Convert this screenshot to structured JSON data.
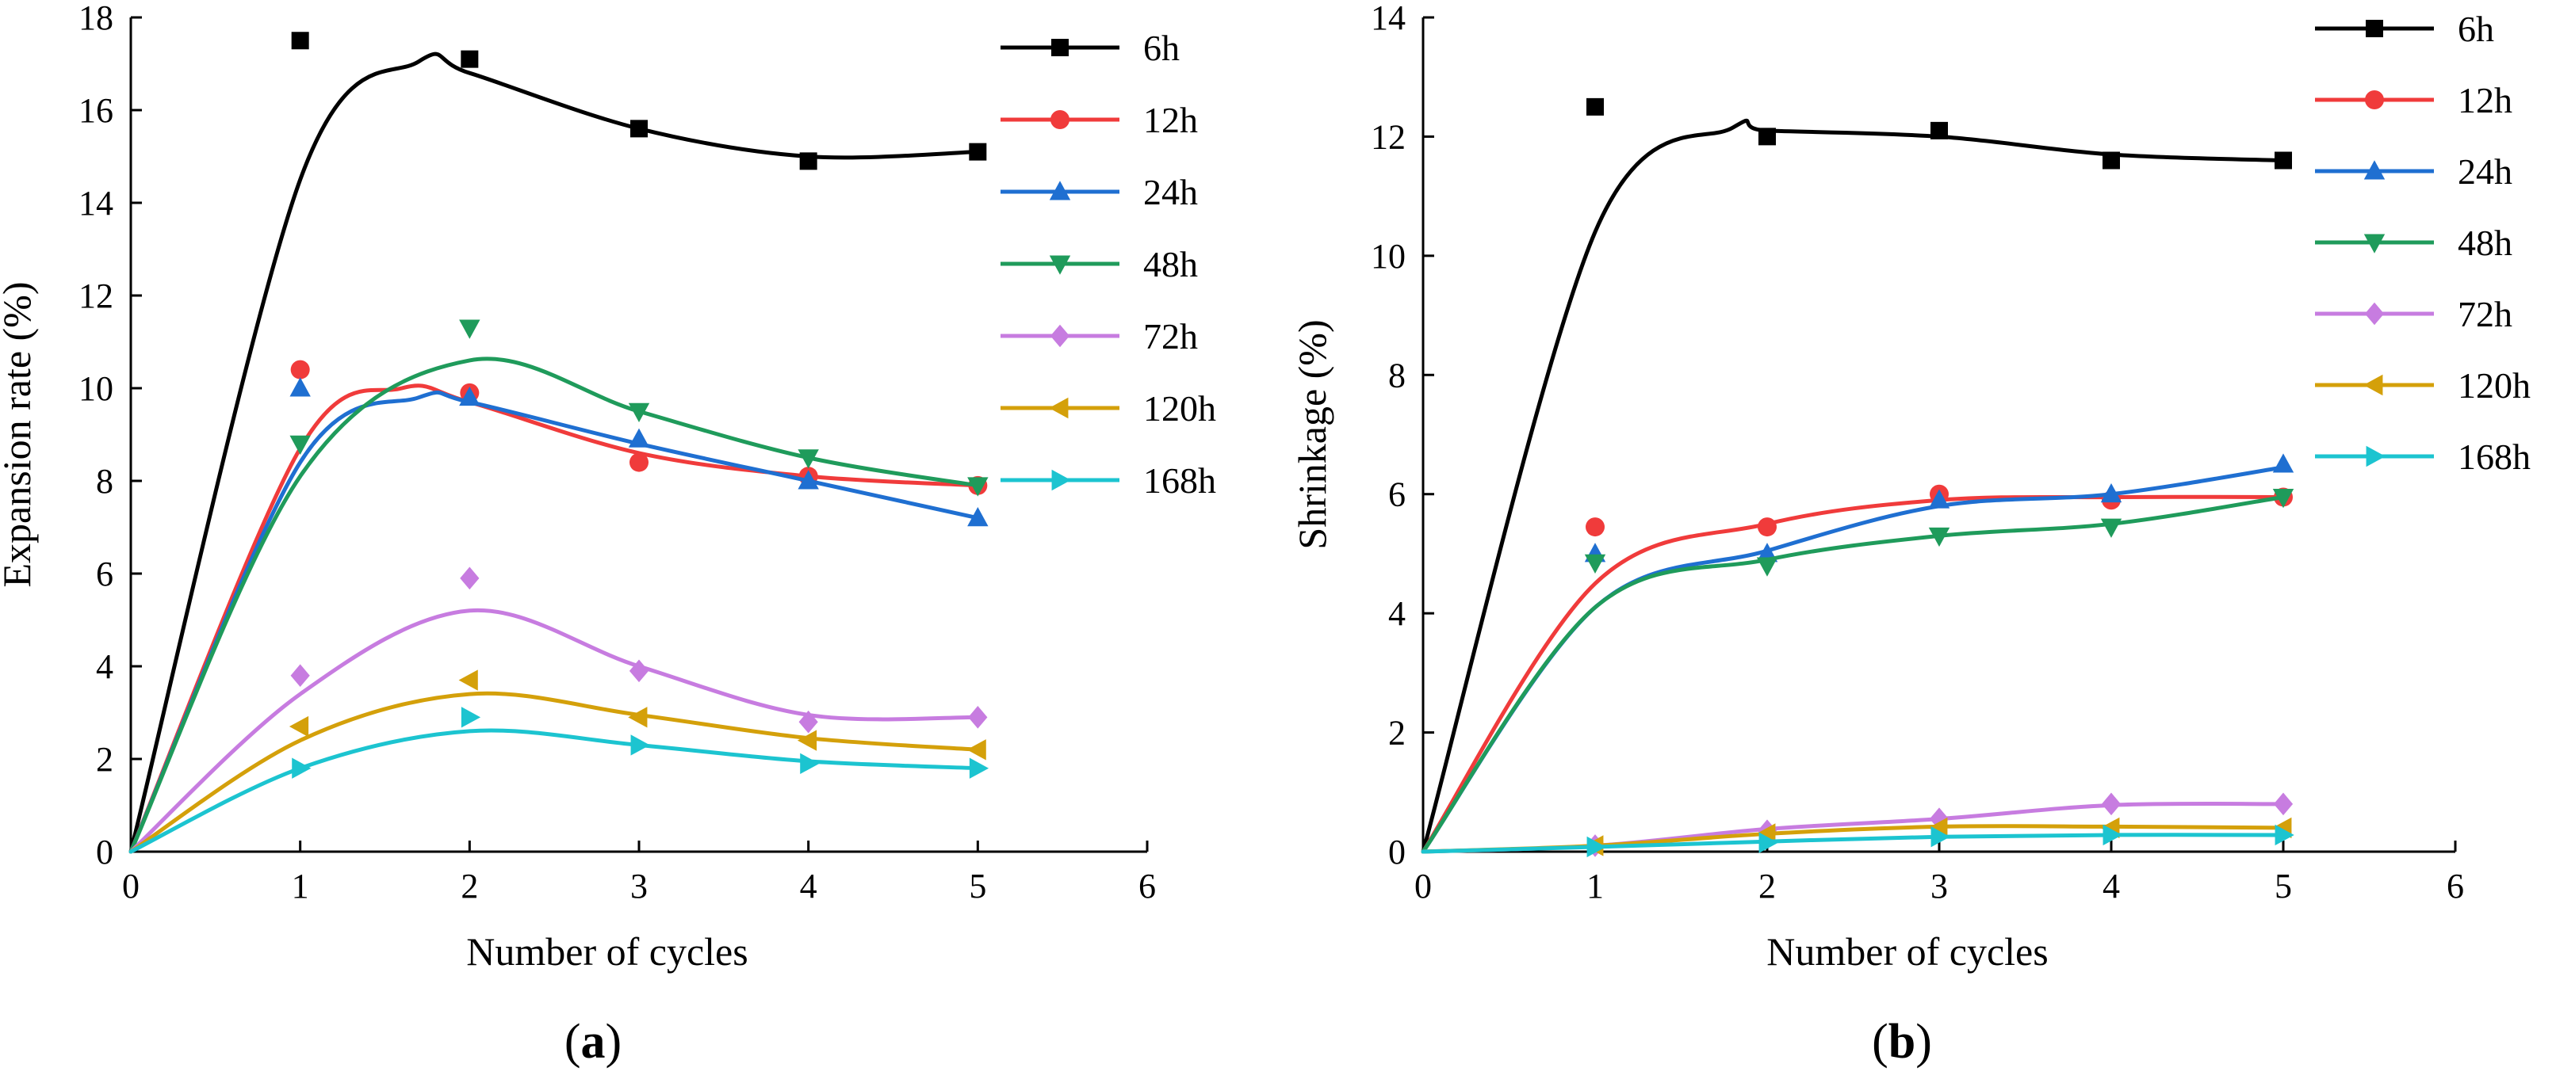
{
  "chart_data": [
    {
      "type": "scatter",
      "panel_label": "a",
      "xlabel": "Number of cycles",
      "ylabel": "Expansion rate (%)",
      "xlim": [
        0,
        6
      ],
      "ylim": [
        0,
        18
      ],
      "xticks": [
        0,
        1,
        2,
        3,
        4,
        5,
        6
      ],
      "yticks": [
        0,
        2,
        4,
        6,
        8,
        10,
        12,
        14,
        16,
        18
      ],
      "grid": false,
      "legend_position": "top-right",
      "series": [
        {
          "name": "6h",
          "color": "#000000",
          "marker": "square",
          "points": [
            [
              0,
              0
            ],
            [
              1,
              17.5
            ],
            [
              2,
              17.1
            ],
            [
              3,
              15.6
            ],
            [
              4,
              14.9
            ],
            [
              5,
              15.1
            ]
          ],
          "curve": [
            [
              0,
              0
            ],
            [
              1,
              14.5
            ],
            [
              1.7,
              17.05
            ],
            [
              2,
              16.8
            ],
            [
              3,
              15.6
            ],
            [
              4,
              15.0
            ],
            [
              5,
              15.1
            ]
          ]
        },
        {
          "name": "12h",
          "color": "#f03b3b",
          "marker": "circle",
          "points": [
            [
              0,
              0
            ],
            [
              1,
              10.4
            ],
            [
              2,
              9.9
            ],
            [
              3,
              8.4
            ],
            [
              4,
              8.1
            ],
            [
              5,
              7.9
            ]
          ],
          "curve": [
            [
              0,
              0
            ],
            [
              1,
              8.7
            ],
            [
              1.6,
              10.0
            ],
            [
              2,
              9.7
            ],
            [
              3,
              8.6
            ],
            [
              4,
              8.1
            ],
            [
              5,
              7.9
            ]
          ]
        },
        {
          "name": "24h",
          "color": "#1f6fd1",
          "marker": "triangle-up",
          "points": [
            [
              0,
              0
            ],
            [
              1,
              10.0
            ],
            [
              2,
              9.8
            ],
            [
              3,
              8.9
            ],
            [
              4,
              8.0
            ],
            [
              5,
              7.2
            ]
          ],
          "curve": [
            [
              0,
              0
            ],
            [
              1,
              8.4
            ],
            [
              1.7,
              9.8
            ],
            [
              2,
              9.7
            ],
            [
              3,
              8.8
            ],
            [
              4,
              8.0
            ],
            [
              5,
              7.2
            ]
          ]
        },
        {
          "name": "48h",
          "color": "#1f9b5b",
          "marker": "triangle-down",
          "points": [
            [
              0,
              0
            ],
            [
              1,
              8.8
            ],
            [
              2,
              11.3
            ],
            [
              3,
              9.5
            ],
            [
              4,
              8.5
            ],
            [
              5,
              7.9
            ]
          ],
          "curve": [
            [
              0,
              0
            ],
            [
              1,
              8.1
            ],
            [
              2,
              10.6
            ],
            [
              3,
              9.5
            ],
            [
              4,
              8.5
            ],
            [
              5,
              7.9
            ]
          ]
        },
        {
          "name": "72h",
          "color": "#c77ce0",
          "marker": "diamond",
          "points": [
            [
              0,
              0
            ],
            [
              1,
              3.8
            ],
            [
              2,
              5.9
            ],
            [
              3,
              3.9
            ],
            [
              4,
              2.8
            ],
            [
              5,
              2.9
            ]
          ],
          "curve": [
            [
              0,
              0
            ],
            [
              1,
              3.4
            ],
            [
              2,
              5.2
            ],
            [
              3,
              4.0
            ],
            [
              4,
              2.95
            ],
            [
              5,
              2.9
            ]
          ]
        },
        {
          "name": "120h",
          "color": "#d4a00a",
          "marker": "triangle-left",
          "points": [
            [
              0,
              0
            ],
            [
              1,
              2.7
            ],
            [
              2,
              3.7
            ],
            [
              3,
              2.9
            ],
            [
              4,
              2.4
            ],
            [
              5,
              2.2
            ]
          ],
          "curve": [
            [
              0,
              0
            ],
            [
              1,
              2.4
            ],
            [
              2,
              3.4
            ],
            [
              3,
              2.95
            ],
            [
              4,
              2.45
            ],
            [
              5,
              2.2
            ]
          ]
        },
        {
          "name": "168h",
          "color": "#1cc4d0",
          "marker": "triangle-right",
          "points": [
            [
              0,
              0
            ],
            [
              1,
              1.8
            ],
            [
              2,
              2.9
            ],
            [
              3,
              2.3
            ],
            [
              4,
              1.9
            ],
            [
              5,
              1.8
            ]
          ],
          "curve": [
            [
              0,
              0
            ],
            [
              1,
              1.8
            ],
            [
              2,
              2.6
            ],
            [
              3,
              2.3
            ],
            [
              4,
              1.95
            ],
            [
              5,
              1.8
            ]
          ]
        }
      ]
    },
    {
      "type": "scatter",
      "panel_label": "b",
      "xlabel": "Number of cycles",
      "ylabel": "Shrinkage (%)",
      "xlim": [
        0,
        6
      ],
      "ylim": [
        0,
        14
      ],
      "xticks": [
        0,
        1,
        2,
        3,
        4,
        5,
        6
      ],
      "yticks": [
        0,
        2,
        4,
        6,
        8,
        10,
        12,
        14
      ],
      "grid": false,
      "legend_position": "top-right",
      "series": [
        {
          "name": "6h",
          "color": "#000000",
          "marker": "square",
          "points": [
            [
              0,
              0
            ],
            [
              1,
              12.5
            ],
            [
              2,
              12.0
            ],
            [
              3,
              12.1
            ],
            [
              4,
              11.6
            ],
            [
              5,
              11.6
            ]
          ],
          "curve": [
            [
              0,
              0
            ],
            [
              1,
              10.4
            ],
            [
              1.8,
              12.15
            ],
            [
              2,
              12.1
            ],
            [
              3,
              12.0
            ],
            [
              4,
              11.7
            ],
            [
              5,
              11.6
            ]
          ]
        },
        {
          "name": "12h",
          "color": "#f03b3b",
          "marker": "circle",
          "points": [
            [
              0,
              0
            ],
            [
              1,
              5.45
            ],
            [
              2,
              5.45
            ],
            [
              3,
              6.0
            ],
            [
              4,
              5.9
            ],
            [
              5,
              5.95
            ]
          ],
          "curve": [
            [
              0,
              0
            ],
            [
              1,
              4.5
            ],
            [
              2,
              5.5
            ],
            [
              3,
              5.9
            ],
            [
              4,
              5.95
            ],
            [
              5,
              5.95
            ]
          ]
        },
        {
          "name": "24h",
          "color": "#1f6fd1",
          "marker": "triangle-up",
          "points": [
            [
              0,
              0
            ],
            [
              1,
              5.0
            ],
            [
              2,
              5.0
            ],
            [
              3,
              5.9
            ],
            [
              4,
              6.0
            ],
            [
              5,
              6.5
            ]
          ],
          "curve": [
            [
              0,
              0
            ],
            [
              1,
              4.1
            ],
            [
              2,
              5.05
            ],
            [
              3,
              5.8
            ],
            [
              4,
              6.0
            ],
            [
              5,
              6.45
            ]
          ]
        },
        {
          "name": "48h",
          "color": "#1f9b5b",
          "marker": "triangle-down",
          "points": [
            [
              0,
              0
            ],
            [
              1,
              4.85
            ],
            [
              2,
              4.8
            ],
            [
              3,
              5.3
            ],
            [
              4,
              5.45
            ],
            [
              5,
              5.95
            ]
          ],
          "curve": [
            [
              0,
              0
            ],
            [
              1,
              4.1
            ],
            [
              2,
              4.9
            ],
            [
              3,
              5.3
            ],
            [
              4,
              5.5
            ],
            [
              5,
              5.95
            ]
          ]
        },
        {
          "name": "72h",
          "color": "#c77ce0",
          "marker": "diamond",
          "points": [
            [
              0,
              0
            ],
            [
              1,
              0.1
            ],
            [
              2,
              0.35
            ],
            [
              3,
              0.55
            ],
            [
              4,
              0.8
            ],
            [
              5,
              0.8
            ]
          ],
          "curve": [
            [
              0,
              0
            ],
            [
              1,
              0.1
            ],
            [
              2,
              0.38
            ],
            [
              3,
              0.55
            ],
            [
              4,
              0.78
            ],
            [
              5,
              0.8
            ]
          ]
        },
        {
          "name": "120h",
          "color": "#d4a00a",
          "marker": "triangle-left",
          "points": [
            [
              0,
              0
            ],
            [
              1,
              0.1
            ],
            [
              2,
              0.3
            ],
            [
              3,
              0.4
            ],
            [
              4,
              0.4
            ],
            [
              5,
              0.4
            ]
          ],
          "curve": [
            [
              0,
              0
            ],
            [
              1,
              0.1
            ],
            [
              2,
              0.3
            ],
            [
              3,
              0.42
            ],
            [
              4,
              0.42
            ],
            [
              5,
              0.4
            ]
          ]
        },
        {
          "name": "168h",
          "color": "#1cc4d0",
          "marker": "triangle-right",
          "points": [
            [
              0,
              0
            ],
            [
              1,
              0.08
            ],
            [
              2,
              0.15
            ],
            [
              3,
              0.25
            ],
            [
              4,
              0.28
            ],
            [
              5,
              0.28
            ]
          ],
          "curve": [
            [
              0,
              0
            ],
            [
              1,
              0.08
            ],
            [
              2,
              0.17
            ],
            [
              3,
              0.25
            ],
            [
              4,
              0.28
            ],
            [
              5,
              0.28
            ]
          ]
        }
      ]
    }
  ]
}
